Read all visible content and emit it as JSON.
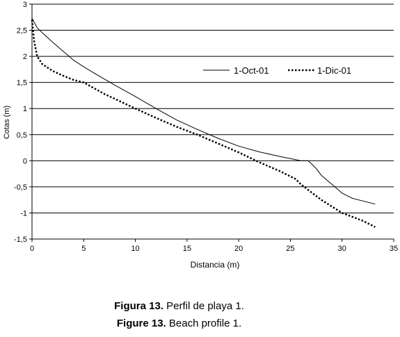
{
  "chart_data": {
    "type": "line",
    "xlabel": "Distancia (m)",
    "ylabel": "Cotas (m)",
    "xlim": [
      0,
      35
    ],
    "ylim": [
      -1.5,
      3
    ],
    "x_ticks": [
      "0",
      "5",
      "10",
      "15",
      "20",
      "25",
      "30",
      "35"
    ],
    "y_ticks": [
      "3",
      "2,5",
      "2",
      "1,5",
      "1",
      "0,5",
      "0",
      "-0,5",
      "-1",
      "-1,5"
    ],
    "grid": "horizontal",
    "legend_position": "top-right",
    "series": [
      {
        "name": "1-Oct-01",
        "style": "solid",
        "x": [
          0,
          0.5,
          1,
          2,
          3,
          4,
          5,
          6,
          8,
          10,
          12,
          14,
          16,
          18,
          20,
          22,
          24,
          26,
          26.7,
          27,
          27.5,
          28,
          29,
          30,
          31,
          32,
          33.2
        ],
        "y": [
          2.73,
          2.55,
          2.45,
          2.27,
          2.1,
          1.93,
          1.8,
          1.68,
          1.45,
          1.23,
          1.0,
          0.78,
          0.6,
          0.43,
          0.28,
          0.17,
          0.08,
          0.0,
          0.0,
          -0.05,
          -0.15,
          -0.28,
          -0.45,
          -0.62,
          -0.72,
          -0.77,
          -0.83
        ]
      },
      {
        "name": "1-Dic-01",
        "style": "dotted",
        "x": [
          0,
          0.2,
          0.5,
          1,
          2,
          3,
          4,
          5,
          7,
          10,
          12,
          14,
          16,
          18,
          20,
          22,
          24,
          25.5,
          26,
          27,
          28,
          30,
          32,
          33.2
        ],
        "y": [
          2.7,
          2.3,
          2.0,
          1.85,
          1.72,
          1.63,
          1.55,
          1.5,
          1.28,
          1.0,
          0.82,
          0.65,
          0.5,
          0.33,
          0.16,
          -0.03,
          -0.2,
          -0.35,
          -0.45,
          -0.6,
          -0.75,
          -1.0,
          -1.15,
          -1.27
        ]
      }
    ]
  },
  "captions": [
    {
      "label": "Figura 13.",
      "text": " Perfil de playa 1."
    },
    {
      "label": "Figure 13.",
      "text": " Beach profile 1."
    }
  ]
}
